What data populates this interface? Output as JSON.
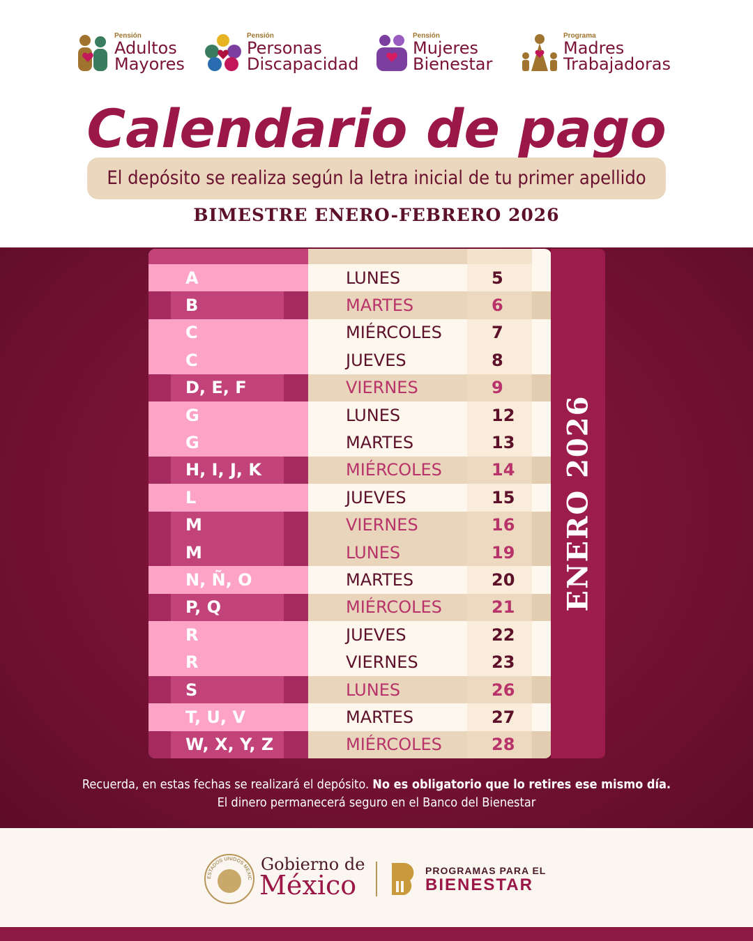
{
  "programs": [
    {
      "kicker": "Pensión",
      "lines": [
        "Adultos",
        "Mayores"
      ]
    },
    {
      "kicker": "Pensión",
      "lines": [
        "Personas",
        "Discapacidad"
      ]
    },
    {
      "kicker": "Pensión",
      "lines": [
        "Mujeres",
        "Bienestar"
      ]
    },
    {
      "kicker": "Programa",
      "lines": [
        "Madres",
        "Trabajadoras"
      ]
    }
  ],
  "header": {
    "title": "Calendario de pago",
    "subtitle": "El depósito se realiza según la letra inicial de tu primer apellido",
    "period": "BIMESTRE ENERO-FEBRERO 2026"
  },
  "table": {
    "month": "ENERO 2026",
    "rows": [
      [
        "A",
        "LUNES",
        "5"
      ],
      [
        "B",
        "MARTES",
        "6"
      ],
      [
        "C",
        "MIÉRCOLES",
        "7"
      ],
      [
        "C",
        "JUEVES",
        "8"
      ],
      [
        "D, E, F",
        "VIERNES",
        "9"
      ],
      [
        "G",
        "LUNES",
        "12"
      ],
      [
        "G",
        "MARTES",
        "13"
      ],
      [
        "H, I, J, K",
        "MIÉRCOLES",
        "14"
      ],
      [
        "L",
        "JUEVES",
        "15"
      ],
      [
        "M",
        "VIERNES",
        "16"
      ],
      [
        "M",
        "LUNES",
        "19"
      ],
      [
        "N, Ñ, O",
        "MARTES",
        "20"
      ],
      [
        "P, Q",
        "MIÉRCOLES",
        "21"
      ],
      [
        "R",
        "JUEVES",
        "22"
      ],
      [
        "R",
        "VIERNES",
        "23"
      ],
      [
        "S",
        "LUNES",
        "26"
      ],
      [
        "T, U, V",
        "MARTES",
        "27"
      ],
      [
        "W, X, Y, Z",
        "MIÉRCOLES",
        "28"
      ]
    ]
  },
  "note": {
    "line1_regular": "Recuerda, en estas fechas se realizará el depósito.",
    "line1_bold": "No es obligatorio que lo retires ese mismo día.",
    "line2": "El dinero permanecerá seguro en el Banco del Bienestar"
  },
  "footer": {
    "seal": "ESTADOS UNIDOS MEXICANOS",
    "gov_line1": "Gobierno de",
    "gov_line2": "México",
    "prog_line1": "PROGRAMAS PARA EL",
    "prog_line2": "BIENESTAR"
  }
}
